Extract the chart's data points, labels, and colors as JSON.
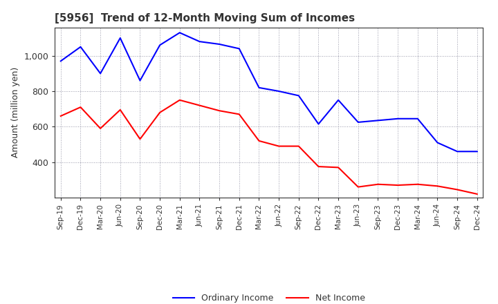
{
  "title": "[5956]  Trend of 12-Month Moving Sum of Incomes",
  "ylabel": "Amount (million yen)",
  "x_labels": [
    "Sep-19",
    "Dec-19",
    "Mar-20",
    "Jun-20",
    "Sep-20",
    "Dec-20",
    "Mar-21",
    "Jun-21",
    "Sep-21",
    "Dec-21",
    "Mar-22",
    "Jun-22",
    "Sep-22",
    "Dec-22",
    "Mar-23",
    "Jun-23",
    "Sep-23",
    "Dec-23",
    "Mar-24",
    "Jun-24",
    "Sep-24",
    "Dec-24"
  ],
  "ordinary_income": [
    970,
    1050,
    900,
    1100,
    860,
    1060,
    1130,
    1080,
    1065,
    1040,
    820,
    800,
    775,
    615,
    750,
    625,
    635,
    645,
    645,
    510,
    460,
    460
  ],
  "net_income": [
    660,
    710,
    590,
    695,
    530,
    680,
    750,
    720,
    690,
    670,
    520,
    490,
    490,
    375,
    370,
    260,
    275,
    270,
    275,
    265,
    245,
    220
  ],
  "ordinary_color": "#0000FF",
  "net_color": "#FF0000",
  "ylim_min": 200,
  "ylim_max": 1160,
  "yticks": [
    400,
    600,
    800,
    1000
  ],
  "background_color": "#FFFFFF",
  "plot_bg_color": "#FFFFFF",
  "grid_color": "#9999AA"
}
